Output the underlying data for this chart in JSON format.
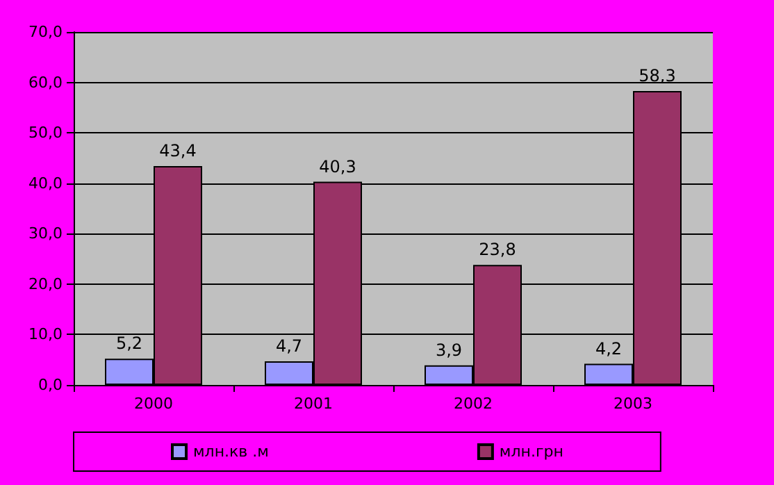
{
  "chart_data": {
    "type": "bar",
    "categories": [
      "2000",
      "2001",
      "2002",
      "2003"
    ],
    "series": [
      {
        "name": "млн.кв .м",
        "color": "#9999ff",
        "values": [
          5.2,
          4.7,
          3.9,
          4.2
        ],
        "value_labels": [
          "5,2",
          "4,7",
          "3,9",
          "4,2"
        ]
      },
      {
        "name": "млн.грн",
        "color": "#993366",
        "values": [
          43.4,
          40.3,
          23.8,
          58.3
        ],
        "value_labels": [
          "43,4",
          "40,3",
          "23,8",
          "58,3"
        ]
      }
    ],
    "ylim": [
      0,
      70
    ],
    "yticks": [
      {
        "value": 0,
        "label": "0,0"
      },
      {
        "value": 10,
        "label": "10,0"
      },
      {
        "value": 20,
        "label": "20,0"
      },
      {
        "value": 30,
        "label": "30,0"
      },
      {
        "value": 40,
        "label": "40,0"
      },
      {
        "value": 50,
        "label": "50,0"
      },
      {
        "value": 60,
        "label": "60,0"
      },
      {
        "value": 70,
        "label": "70,0"
      }
    ],
    "grid": "y",
    "legend": "bottom"
  }
}
